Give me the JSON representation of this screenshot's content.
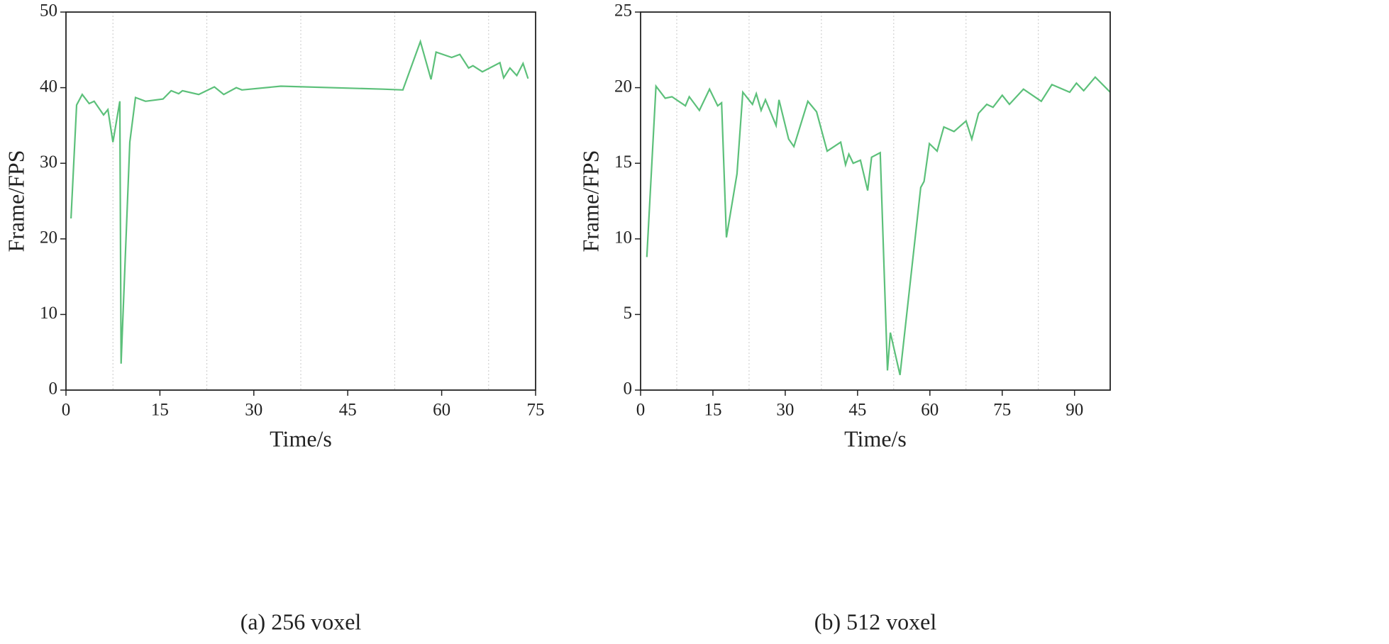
{
  "chart_data": [
    {
      "type": "line",
      "caption": "(a) 256 voxel",
      "x_label": "Time/s",
      "y_label": "Frame/FPS",
      "xlim": [
        0,
        75
      ],
      "ylim": [
        0,
        50
      ],
      "xticks": [
        0,
        15,
        30,
        45,
        60,
        75
      ],
      "yticks": [
        0,
        10,
        20,
        30,
        40,
        50
      ],
      "xgrid": [
        7.5,
        22.5,
        37.5,
        52.5,
        67.5
      ],
      "series": [
        {
          "color": "#5cc07a",
          "x": [
            0.8,
            1.7,
            2.6,
            3.7,
            4.5,
            6.0,
            6.7,
            7.5,
            8.6,
            8.8,
            10.2,
            11.1,
            12.7,
            15.5,
            16.8,
            18.0,
            18.6,
            21.2,
            23.7,
            25.2,
            27.2,
            28.1,
            34.3,
            50.6,
            53.8,
            56.6,
            58.3,
            59.1,
            61.6,
            62.9,
            64.3,
            65.0,
            66.5,
            69.3,
            69.9,
            70.9,
            72.0,
            73.0,
            73.8
          ],
          "values": [
            22.7,
            37.7,
            39.1,
            37.9,
            38.2,
            36.4,
            37.1,
            32.8,
            38.2,
            3.5,
            32.8,
            38.7,
            38.2,
            38.5,
            39.6,
            39.2,
            39.6,
            39.1,
            40.1,
            39.1,
            40.0,
            39.7,
            40.2,
            39.8,
            39.7,
            46.1,
            41.1,
            44.7,
            44.0,
            44.4,
            42.6,
            42.9,
            42.1,
            43.3,
            41.3,
            42.6,
            41.6,
            43.2,
            41.2
          ]
        }
      ]
    },
    {
      "type": "line",
      "caption": "(b) 512 voxel",
      "x_label": "Time/s",
      "y_label": "Frame/FPS",
      "xlim": [
        0,
        97.4
      ],
      "ylim": [
        0,
        25
      ],
      "xticks": [
        0,
        15,
        30,
        45,
        60,
        75,
        90
      ],
      "yticks": [
        0,
        5,
        10,
        15,
        20,
        25
      ],
      "xgrid": [
        7.5,
        22.5,
        37.5,
        52.5,
        67.5,
        82.5
      ],
      "series": [
        {
          "color": "#5cc07a",
          "x": [
            1.3,
            3.2,
            5.1,
            6.5,
            9.3,
            10.1,
            12.2,
            14.3,
            16.0,
            16.8,
            17.8,
            20.0,
            21.2,
            23.2,
            24.0,
            25.0,
            25.9,
            28.1,
            28.7,
            30.7,
            31.8,
            34.7,
            36.5,
            38.7,
            41.5,
            42.5,
            43.2,
            44.1,
            45.6,
            47.1,
            47.9,
            49.7,
            51.2,
            51.8,
            53.8,
            58.1,
            58.8,
            59.9,
            61.5,
            62.9,
            65.0,
            67.5,
            68.7,
            70.1,
            71.8,
            73.1,
            75.0,
            76.5,
            79.4,
            83.1,
            85.3,
            89.0,
            90.4,
            91.9,
            94.3,
            97.4
          ],
          "values": [
            8.8,
            20.1,
            19.3,
            19.4,
            18.8,
            19.4,
            18.5,
            19.9,
            18.8,
            19.0,
            10.1,
            14.3,
            19.7,
            18.9,
            19.6,
            18.5,
            19.2,
            17.5,
            19.2,
            16.6,
            16.1,
            19.1,
            18.4,
            15.8,
            16.4,
            14.9,
            15.6,
            15.0,
            15.2,
            13.2,
            15.4,
            15.7,
            1.3,
            3.8,
            1.0,
            13.4,
            13.8,
            16.3,
            15.8,
            17.4,
            17.1,
            17.8,
            16.6,
            18.3,
            18.9,
            18.7,
            19.5,
            18.9,
            19.9,
            19.1,
            20.2,
            19.7,
            20.3,
            19.8,
            20.7,
            19.7
          ]
        }
      ]
    }
  ]
}
